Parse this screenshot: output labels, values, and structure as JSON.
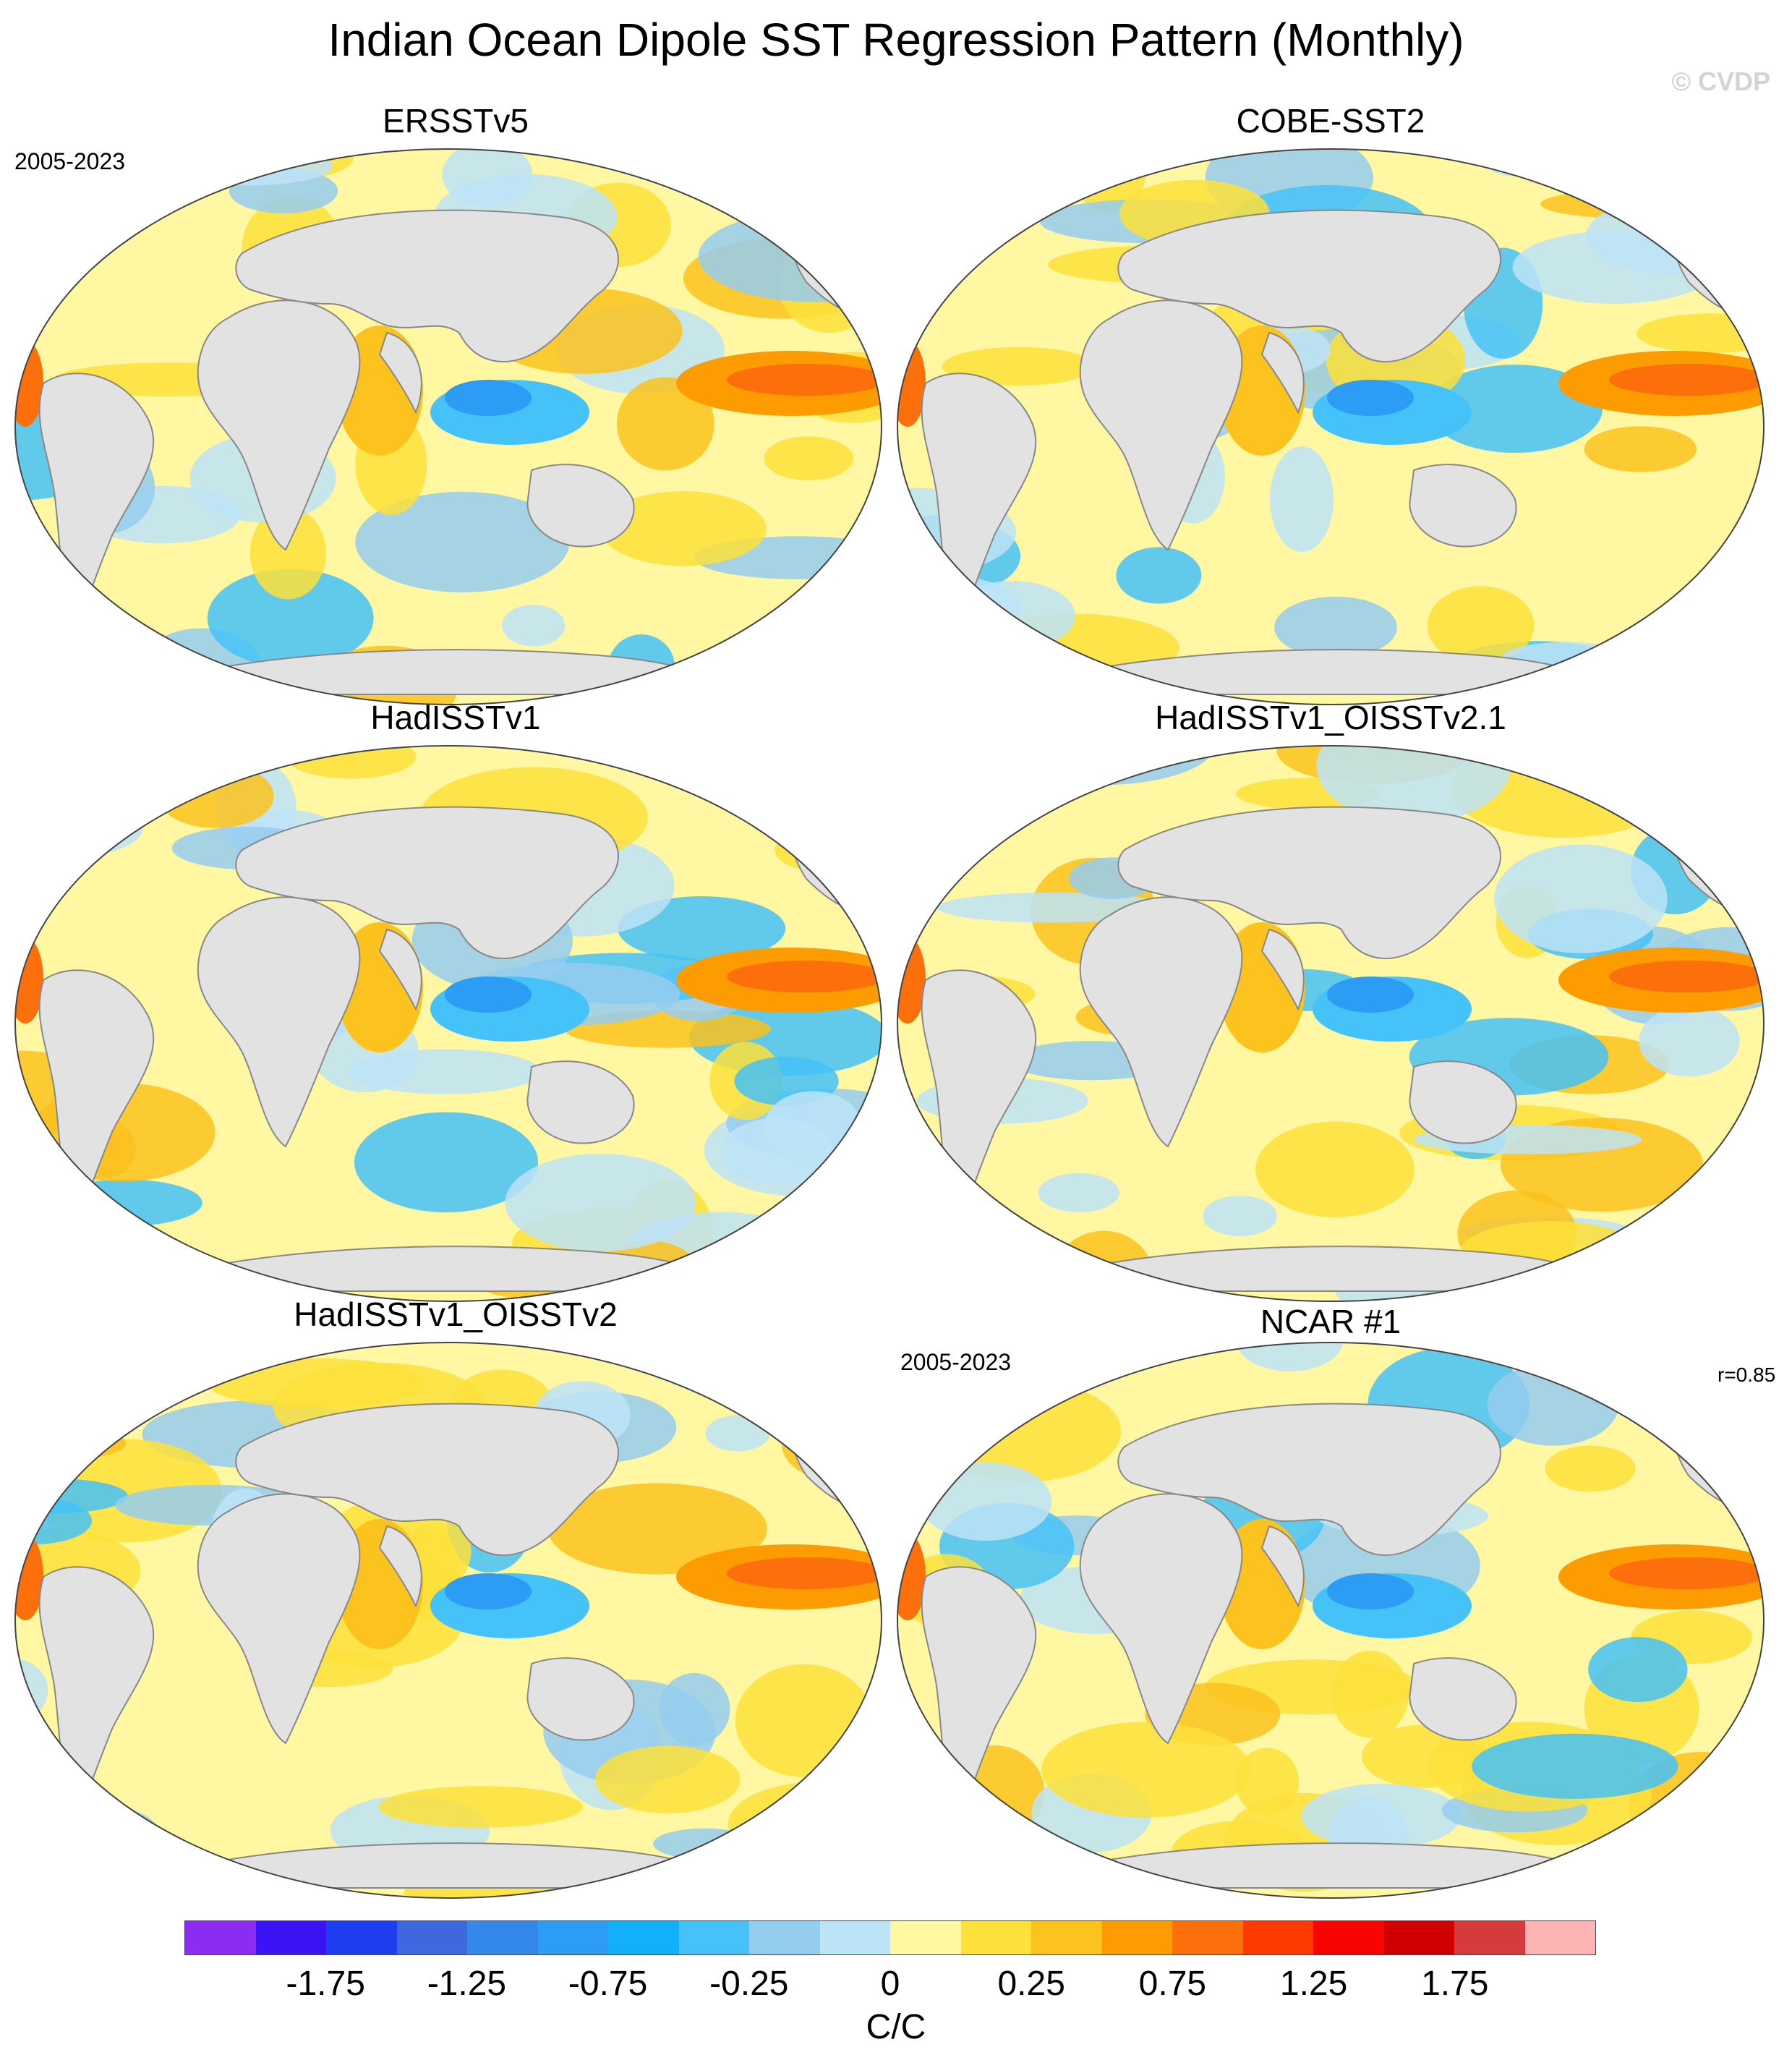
{
  "title": "Indian Ocean Dipole SST Regression Pattern (Monthly)",
  "watermark": "© CVDP",
  "panels": [
    {
      "name": "ERSSTv5",
      "period": "2005-2023",
      "corr": ""
    },
    {
      "name": "COBE-SST2",
      "period": "",
      "corr": ""
    },
    {
      "name": "HadISSTv1",
      "period": "",
      "corr": ""
    },
    {
      "name": "HadISSTv1_OISSTv2.1",
      "period": "",
      "corr": ""
    },
    {
      "name": "HadISSTv1_OISSTv2",
      "period": "",
      "corr": ""
    },
    {
      "name": "NCAR #1",
      "period": "2005-2023",
      "corr": "r=0.85"
    }
  ],
  "colorbar": {
    "colors": [
      "#8b2cf3",
      "#3b13f5",
      "#1f3ef0",
      "#3f68e0",
      "#3488ea",
      "#2c9cf5",
      "#12b0fb",
      "#45c2f7",
      "#95cdee",
      "#bde3f7",
      "#fff7a2",
      "#fde13a",
      "#fcc21d",
      "#fc9c00",
      "#fd6f0b",
      "#fe3a00",
      "#f80501",
      "#d10000",
      "#d53b3b",
      "#feb4b4"
    ],
    "tick_labels": [
      "-1.75",
      "-1.25",
      "-0.75",
      "-0.25",
      "0",
      "0.25",
      "0.75",
      "1.25",
      "1.75"
    ],
    "units": "C/C"
  }
}
